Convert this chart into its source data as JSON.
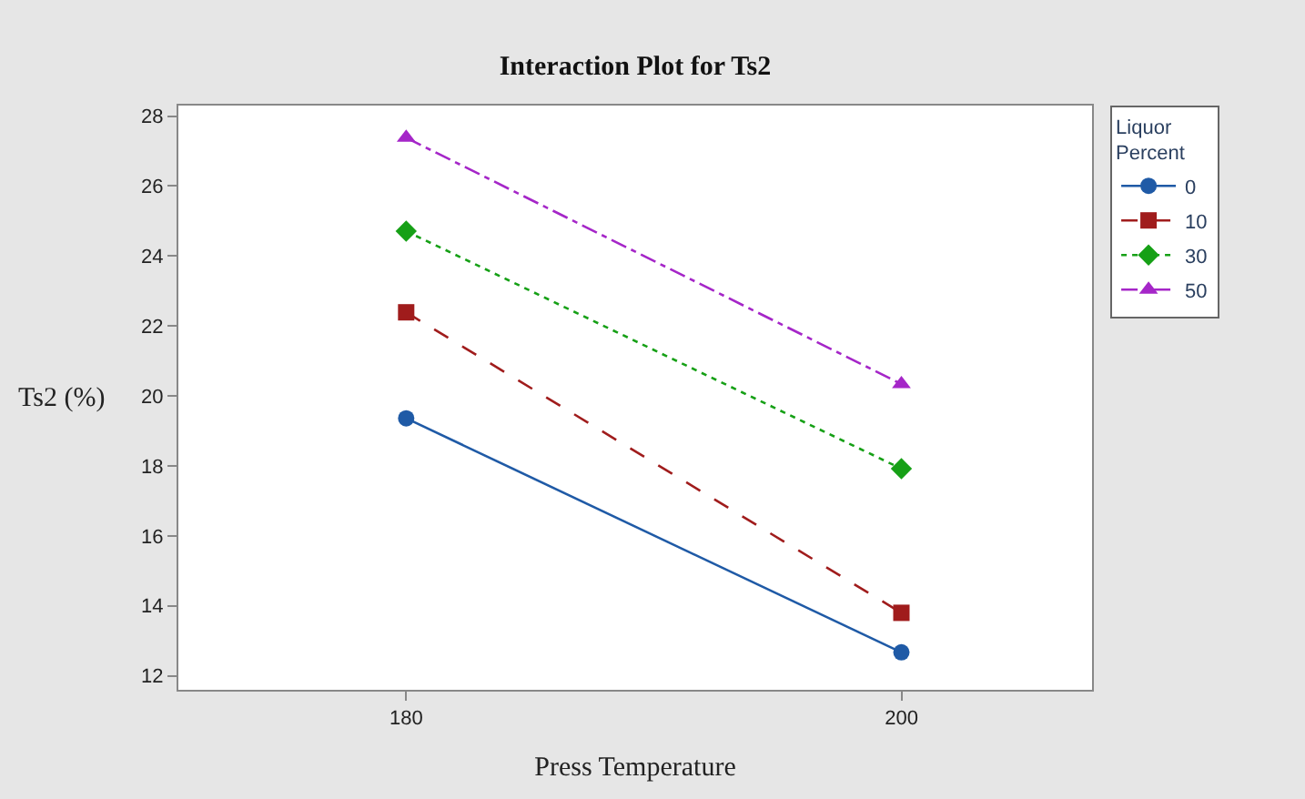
{
  "chart_data": {
    "type": "line",
    "title": "Interaction Plot for Ts2",
    "xlabel": "Press Temperature",
    "ylabel": "Ts2 (%)",
    "legend_title": "Liquor\nPercent",
    "x": [
      180,
      200
    ],
    "series": [
      {
        "name": "0",
        "color": "#1f5aa6",
        "values": [
          19.36,
          12.67
        ],
        "marker": "circle",
        "line_style": "solid"
      },
      {
        "name": "10",
        "color": "#a01c1c",
        "values": [
          22.39,
          13.8
        ],
        "marker": "square",
        "line_style": "dashed"
      },
      {
        "name": "30",
        "color": "#16a016",
        "values": [
          24.71,
          17.92
        ],
        "marker": "diamond",
        "line_style": "dotted"
      },
      {
        "name": "50",
        "color": "#a526c8",
        "values": [
          27.38,
          20.34
        ],
        "marker": "triangle",
        "line_style": "dashdot"
      }
    ],
    "xlim": [
      170.8,
      207.7
    ],
    "xticks": [
      180,
      200
    ],
    "ylim": [
      11.6,
      28.3
    ],
    "yticks": [
      12,
      14,
      16,
      18,
      20,
      22,
      24,
      26,
      28
    ],
    "legend": "top right"
  }
}
